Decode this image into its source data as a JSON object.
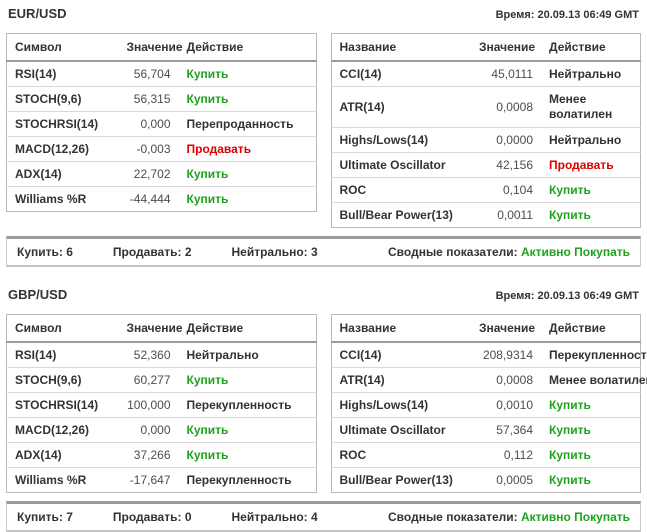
{
  "colors": {
    "buy_green": "#1fa21f",
    "sell_red": "#e00000",
    "text_dark": "#333333"
  },
  "sections": [
    {
      "pair": "EUR/USD",
      "time": "Время: 20.09.13 06:49 GMT",
      "left_table": {
        "headers": [
          "Символ",
          "Значение",
          "Действие"
        ],
        "rows": [
          {
            "name": "RSI(14)",
            "value": "56,704",
            "action": "Купить",
            "action_class": "act-buy"
          },
          {
            "name": "STOCH(9,6)",
            "value": "56,315",
            "action": "Купить",
            "action_class": "act-buy"
          },
          {
            "name": "STOCHRSI(14)",
            "value": "0,000",
            "action": "Перепроданность",
            "action_class": "act-neutral"
          },
          {
            "name": "MACD(12,26)",
            "value": "-0,003",
            "action": "Продавать",
            "action_class": "act-sell"
          },
          {
            "name": "ADX(14)",
            "value": "22,702",
            "action": "Купить",
            "action_class": "act-buy"
          },
          {
            "name": "Williams %R",
            "value": "-44,444",
            "action": "Купить",
            "action_class": "act-buy"
          }
        ]
      },
      "right_table": {
        "headers": [
          "Название",
          "Значение",
          "Действие"
        ],
        "rows": [
          {
            "name": "CCI(14)",
            "value": "45,0111",
            "action": "Нейтрально",
            "action_class": "act-neutral"
          },
          {
            "name": "ATR(14)",
            "value": "0,0008",
            "action": "Менее волатилен",
            "action_class": "act-neutral"
          },
          {
            "name": "Highs/Lows(14)",
            "value": "0,0000",
            "action": "Нейтрально",
            "action_class": "act-neutral"
          },
          {
            "name": "Ultimate Oscillator",
            "value": "42,156",
            "action": "Продавать",
            "action_class": "act-sell"
          },
          {
            "name": "ROC",
            "value": "0,104",
            "action": "Купить",
            "action_class": "act-buy"
          },
          {
            "name": "Bull/Bear Power(13)",
            "value": "0,0011",
            "action": "Купить",
            "action_class": "act-buy"
          }
        ]
      },
      "summary": {
        "buy_label": "Купить:",
        "buy_count": "6",
        "sell_label": "Продавать:",
        "sell_count": "2",
        "neutral_label": "Нейтрально:",
        "neutral_count": "3",
        "overall_label": "Сводные показатели:",
        "overall_value": "Активно Покупать"
      }
    },
    {
      "pair": "GBP/USD",
      "time": "Время: 20.09.13 06:49 GMT",
      "left_table": {
        "headers": [
          "Символ",
          "Значение",
          "Действие"
        ],
        "rows": [
          {
            "name": "RSI(14)",
            "value": "52,360",
            "action": "Нейтрально",
            "action_class": "act-neutral"
          },
          {
            "name": "STOCH(9,6)",
            "value": "60,277",
            "action": "Купить",
            "action_class": "act-buy"
          },
          {
            "name": "STOCHRSI(14)",
            "value": "100,000",
            "action": "Перекупленность",
            "action_class": "act-neutral"
          },
          {
            "name": "MACD(12,26)",
            "value": "0,000",
            "action": "Купить",
            "action_class": "act-buy"
          },
          {
            "name": "ADX(14)",
            "value": "37,266",
            "action": "Купить",
            "action_class": "act-buy"
          },
          {
            "name": "Williams %R",
            "value": "-17,647",
            "action": "Перекупленность",
            "action_class": "act-neutral"
          }
        ]
      },
      "right_table": {
        "headers": [
          "Название",
          "Значение",
          "Действие"
        ],
        "rows": [
          {
            "name": "CCI(14)",
            "value": "208,9314",
            "action": "Перекупленность",
            "action_class": "act-neutral"
          },
          {
            "name": "ATR(14)",
            "value": "0,0008",
            "action": "Менее волатилен",
            "action_class": "act-neutral"
          },
          {
            "name": "Highs/Lows(14)",
            "value": "0,0010",
            "action": "Купить",
            "action_class": "act-buy"
          },
          {
            "name": "Ultimate Oscillator",
            "value": "57,364",
            "action": "Купить",
            "action_class": "act-buy"
          },
          {
            "name": "ROC",
            "value": "0,112",
            "action": "Купить",
            "action_class": "act-buy"
          },
          {
            "name": "Bull/Bear Power(13)",
            "value": "0,0005",
            "action": "Купить",
            "action_class": "act-buy"
          }
        ]
      },
      "summary": {
        "buy_label": "Купить:",
        "buy_count": "7",
        "sell_label": "Продавать:",
        "sell_count": "0",
        "neutral_label": "Нейтрально:",
        "neutral_count": "4",
        "overall_label": "Сводные показатели:",
        "overall_value": "Активно Покупать"
      }
    }
  ]
}
